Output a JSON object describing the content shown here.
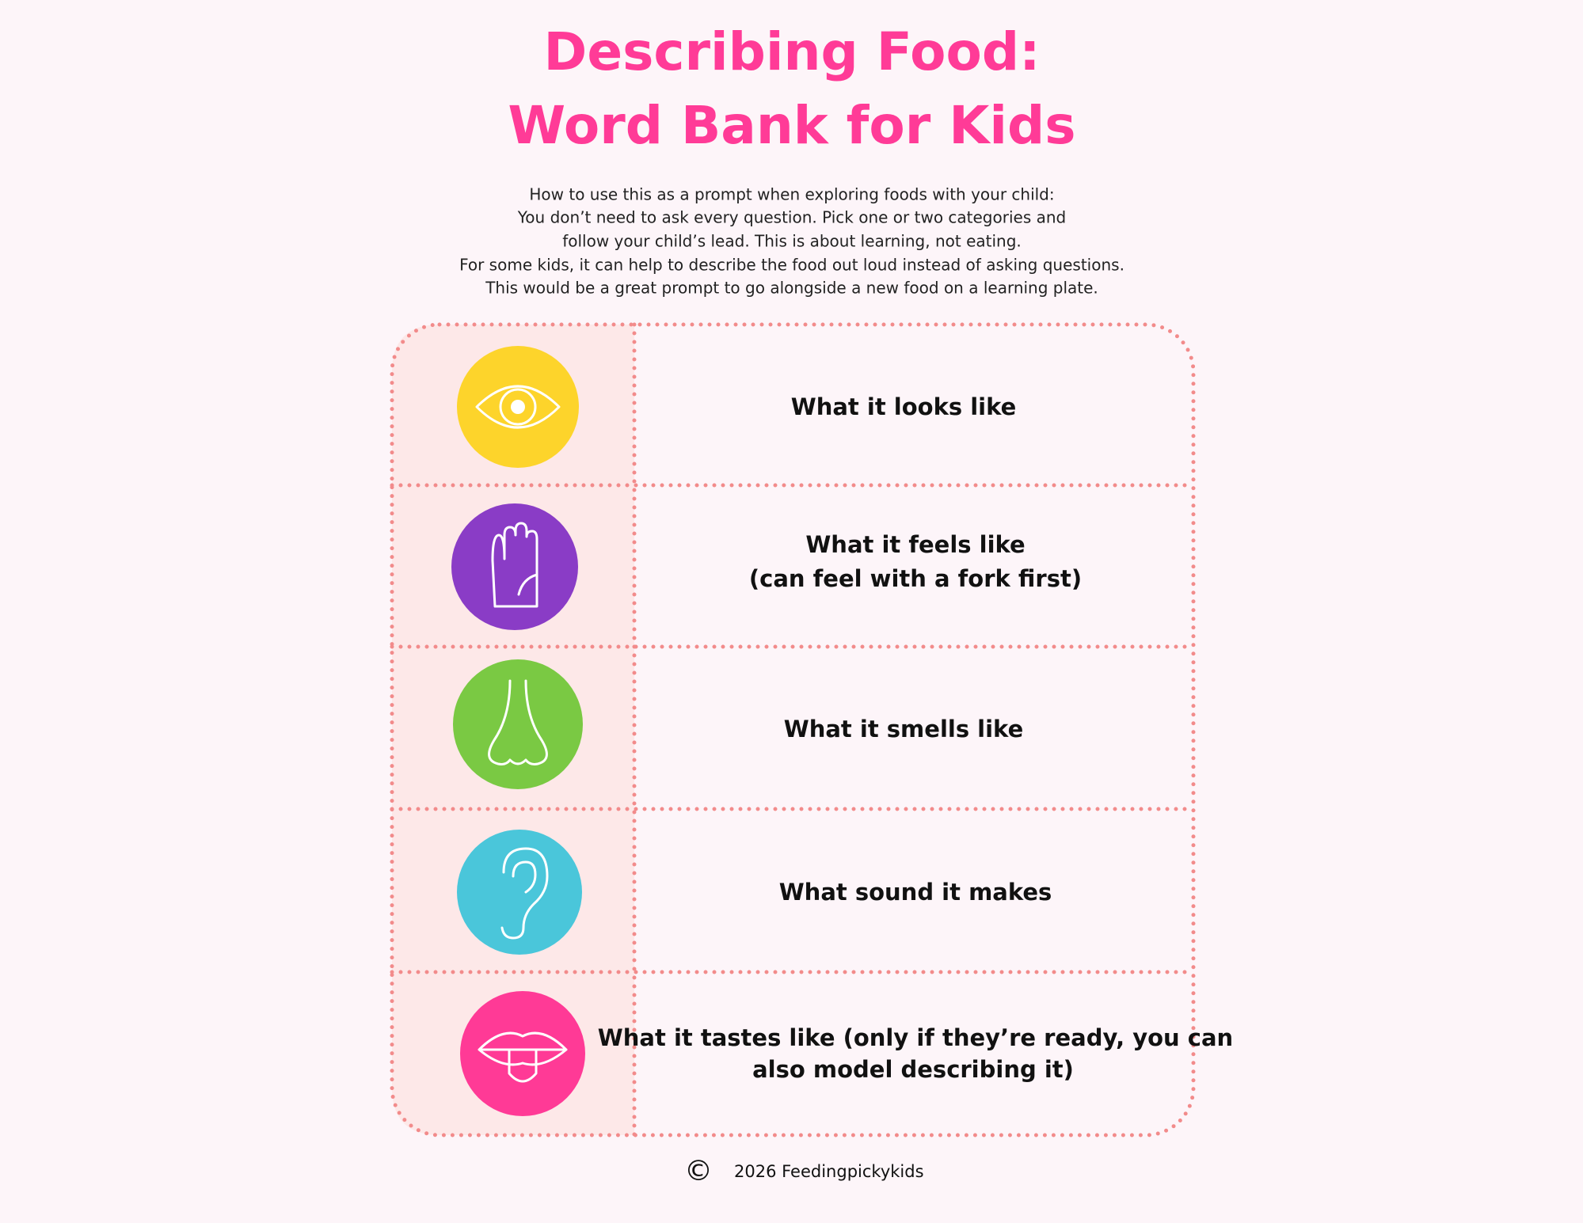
{
  "header": {
    "title": [
      "Describing Food:",
      "Word Bank for Kids"
    ],
    "intro": [
      "How to use this as a prompt when exploring foods with your child:",
      "You don’t need to ask every question. Pick one or two categories and",
      "follow your child’s lead. This is about learning, not eating.",
      "For some kids, it can help to describe the food out loud instead of asking questions.",
      "This would be a great prompt to go alongside a new food on a learning plate."
    ]
  },
  "rows": [
    {
      "label": [
        "What it looks like"
      ]
    },
    {
      "label": [
        "What it feels like",
        "(can feel with a fork first)"
      ]
    },
    {
      "label": [
        "What it smells like"
      ]
    },
    {
      "label": [
        "What sound it makes"
      ]
    },
    {
      "label": [
        "What it tastes like (only if they’re ready, you can",
        "also model describing it)"
      ]
    }
  ],
  "footer": {
    "symbol": "©",
    "text": "2026 Feedingpickykids"
  }
}
